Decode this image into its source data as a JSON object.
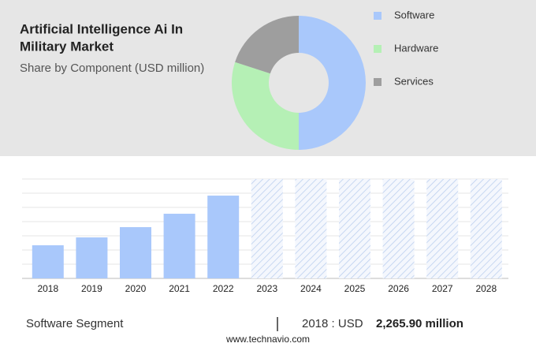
{
  "chart_data": [
    {
      "type": "pie",
      "title": [
        "Artificial Intelligence Ai In",
        "Military Market"
      ],
      "subtitle": "Share by Component (USD million)",
      "donut": true,
      "categories": [
        "Software",
        "Hardware",
        "Services"
      ],
      "values": [
        50,
        30,
        20
      ],
      "colors": [
        "#a9c8fb",
        "#b5f0b5",
        "#9e9e9e"
      ]
    },
    {
      "type": "bar",
      "categories": [
        "2018",
        "2019",
        "2020",
        "2021",
        "2022",
        "2023",
        "2024",
        "2025",
        "2026",
        "2027",
        "2028"
      ],
      "values": [
        2265.9,
        2805,
        3507,
        4424,
        5665,
        null,
        null,
        null,
        null,
        null,
        null
      ],
      "color": "#a9c8fb",
      "ylim": [
        0,
        6800
      ]
    }
  ],
  "footer": {
    "segment": "Software Segment",
    "year_label": "2018 : USD",
    "value": "2,265.90 million",
    "site": "www.technavio.com"
  }
}
